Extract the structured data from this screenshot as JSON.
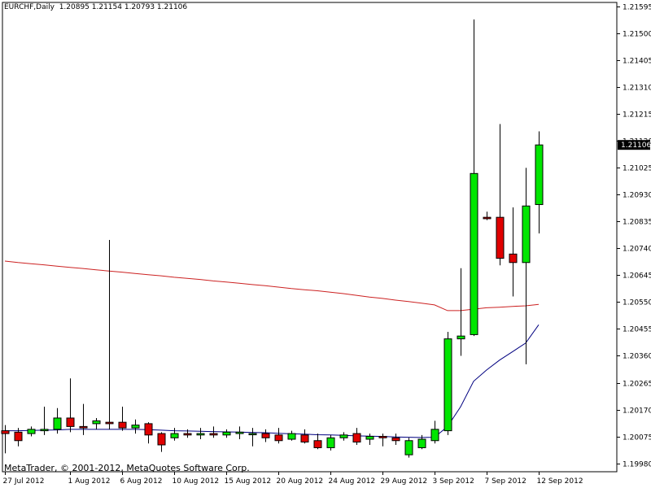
{
  "header": {
    "symbol": "EURCHF,Daily",
    "ohlc": "1.20895 1.21154 1.20793 1.21106"
  },
  "footer": {
    "copyright": "MetaTrader, © 2001-2012, MetaQuotes Software Corp."
  },
  "colors": {
    "bull": "#00e600",
    "bear": "#e00000",
    "wick": "#000000",
    "ma_long": "#cc2222",
    "ma_short": "#000080",
    "last_price_bg": "#000000",
    "last_price_text": "#ffffff"
  },
  "chart_data": {
    "type": "candlestick",
    "symbol": "EURCHF",
    "timeframe": "Daily",
    "ylim": [
      1.1995,
      1.2161
    ],
    "y_ticks": [
      "1.21595",
      "1.21500",
      "1.21405",
      "1.21310",
      "1.21215",
      "1.21120",
      "1.21025",
      "1.20930",
      "1.20835",
      "1.20740",
      "1.20645",
      "1.20550",
      "1.20455",
      "1.20360",
      "1.20265",
      "1.20170",
      "1.20075",
      "1.19980"
    ],
    "last_price": "1.21106",
    "x_ticks": [
      {
        "label": "27 Jul 2012",
        "index": 0
      },
      {
        "label": "1 Aug 2012",
        "index": 5
      },
      {
        "label": "6 Aug 2012",
        "index": 9
      },
      {
        "label": "10 Aug 2012",
        "index": 13
      },
      {
        "label": "15 Aug 2012",
        "index": 17
      },
      {
        "label": "20 Aug 2012",
        "index": 21
      },
      {
        "label": "24 Aug 2012",
        "index": 25
      },
      {
        "label": "29 Aug 2012",
        "index": 29
      },
      {
        "label": "3 Sep 2012",
        "index": 33
      },
      {
        "label": "7 Sep 2012",
        "index": 37
      },
      {
        "label": "12 Sep 2012",
        "index": 41
      }
    ],
    "candles": [
      {
        "o": 1.20095,
        "h": 1.20115,
        "l": 1.20015,
        "c": 1.20085
      },
      {
        "o": 1.2009,
        "h": 1.20105,
        "l": 1.2004,
        "c": 1.2006
      },
      {
        "o": 1.20085,
        "h": 1.2011,
        "l": 1.20075,
        "c": 1.201
      },
      {
        "o": 1.20095,
        "h": 1.2018,
        "l": 1.2008,
        "c": 1.201
      },
      {
        "o": 1.201,
        "h": 1.20175,
        "l": 1.20085,
        "c": 1.2014
      },
      {
        "o": 1.2014,
        "h": 1.2028,
        "l": 1.2009,
        "c": 1.2011
      },
      {
        "o": 1.2011,
        "h": 1.2019,
        "l": 1.2008,
        "c": 1.20105
      },
      {
        "o": 1.2012,
        "h": 1.2014,
        "l": 1.201,
        "c": 1.2013
      },
      {
        "o": 1.20125,
        "h": 1.2077,
        "l": 1.201,
        "c": 1.2012
      },
      {
        "o": 1.20125,
        "h": 1.2018,
        "l": 1.20095,
        "c": 1.20105
      },
      {
        "o": 1.20105,
        "h": 1.20135,
        "l": 1.20085,
        "c": 1.20115
      },
      {
        "o": 1.2012,
        "h": 1.20125,
        "l": 1.2005,
        "c": 1.2008
      },
      {
        "o": 1.20085,
        "h": 1.2009,
        "l": 1.2002,
        "c": 1.20045
      },
      {
        "o": 1.2007,
        "h": 1.20105,
        "l": 1.2006,
        "c": 1.20085
      },
      {
        "o": 1.20085,
        "h": 1.201,
        "l": 1.2007,
        "c": 1.2008
      },
      {
        "o": 1.2008,
        "h": 1.20105,
        "l": 1.20065,
        "c": 1.20085
      },
      {
        "o": 1.20085,
        "h": 1.2011,
        "l": 1.2007,
        "c": 1.2008
      },
      {
        "o": 1.2008,
        "h": 1.201,
        "l": 1.2007,
        "c": 1.2009
      },
      {
        "o": 1.20085,
        "h": 1.2011,
        "l": 1.20065,
        "c": 1.2009
      },
      {
        "o": 1.20085,
        "h": 1.20105,
        "l": 1.2004,
        "c": 1.20085
      },
      {
        "o": 1.20085,
        "h": 1.201,
        "l": 1.20055,
        "c": 1.2007
      },
      {
        "o": 1.2008,
        "h": 1.20105,
        "l": 1.2005,
        "c": 1.2006
      },
      {
        "o": 1.20065,
        "h": 1.20095,
        "l": 1.2006,
        "c": 1.20085
      },
      {
        "o": 1.2008,
        "h": 1.201,
        "l": 1.2005,
        "c": 1.20055
      },
      {
        "o": 1.2006,
        "h": 1.20085,
        "l": 1.2003,
        "c": 1.20035
      },
      {
        "o": 1.20035,
        "h": 1.2008,
        "l": 1.20025,
        "c": 1.2007
      },
      {
        "o": 1.2007,
        "h": 1.2009,
        "l": 1.2006,
        "c": 1.2008
      },
      {
        "o": 1.20085,
        "h": 1.20105,
        "l": 1.20045,
        "c": 1.20055
      },
      {
        "o": 1.20065,
        "h": 1.20085,
        "l": 1.20045,
        "c": 1.20075
      },
      {
        "o": 1.20075,
        "h": 1.20085,
        "l": 1.2004,
        "c": 1.2007
      },
      {
        "o": 1.2007,
        "h": 1.20085,
        "l": 1.20045,
        "c": 1.2006
      },
      {
        "o": 1.2001,
        "h": 1.2007,
        "l": 1.2,
        "c": 1.2006
      },
      {
        "o": 1.20035,
        "h": 1.2008,
        "l": 1.2003,
        "c": 1.20065
      },
      {
        "o": 1.2006,
        "h": 1.2013,
        "l": 1.2005,
        "c": 1.201
      },
      {
        "o": 1.20095,
        "h": 1.20445,
        "l": 1.2008,
        "c": 1.2042
      },
      {
        "o": 1.2042,
        "h": 1.2067,
        "l": 1.2036,
        "c": 1.2043
      },
      {
        "o": 1.20435,
        "h": 1.2155,
        "l": 1.2043,
        "c": 1.21005
      },
      {
        "o": 1.2085,
        "h": 1.2087,
        "l": 1.2084,
        "c": 1.20845
      },
      {
        "o": 1.2085,
        "h": 1.2118,
        "l": 1.2068,
        "c": 1.20705
      },
      {
        "o": 1.2072,
        "h": 1.20885,
        "l": 1.2057,
        "c": 1.2069
      },
      {
        "o": 1.2069,
        "h": 1.21025,
        "l": 1.2033,
        "c": 1.2089
      },
      {
        "o": 1.20895,
        "h": 1.21154,
        "l": 1.20793,
        "c": 1.21106
      }
    ],
    "series": [
      {
        "type": "line",
        "color": "#cc2222",
        "values": [
          1.20695,
          1.2069,
          1.20686,
          1.20682,
          1.20677,
          1.20673,
          1.20669,
          1.20664,
          1.2066,
          1.20656,
          1.20651,
          1.20647,
          1.20643,
          1.20638,
          1.20634,
          1.2063,
          1.20625,
          1.20621,
          1.20617,
          1.20612,
          1.20608,
          1.20603,
          1.20598,
          1.20594,
          1.2059,
          1.20585,
          1.2058,
          1.20574,
          1.20568,
          1.20563,
          1.20557,
          1.20552,
          1.20546,
          1.2054,
          1.2052,
          1.2052,
          1.20525,
          1.2053,
          1.20532,
          1.20535,
          1.20537,
          1.20542
        ]
      },
      {
        "type": "line",
        "color": "#000080",
        "values": [
          1.20095,
          1.20095,
          1.20096,
          1.20097,
          1.20098,
          1.201,
          1.201,
          1.201,
          1.201,
          1.201,
          1.201,
          1.20099,
          1.20097,
          1.20095,
          1.20094,
          1.20093,
          1.20092,
          1.20091,
          1.2009,
          1.20089,
          1.20088,
          1.20086,
          1.20084,
          1.20083,
          1.20081,
          1.2008,
          1.20079,
          1.20077,
          1.20076,
          1.20075,
          1.20073,
          1.20072,
          1.20071,
          1.20072,
          1.2011,
          1.2018,
          1.2027,
          1.2031,
          1.20345,
          1.20375,
          1.20405,
          1.2047
        ]
      }
    ],
    "grid": false
  }
}
